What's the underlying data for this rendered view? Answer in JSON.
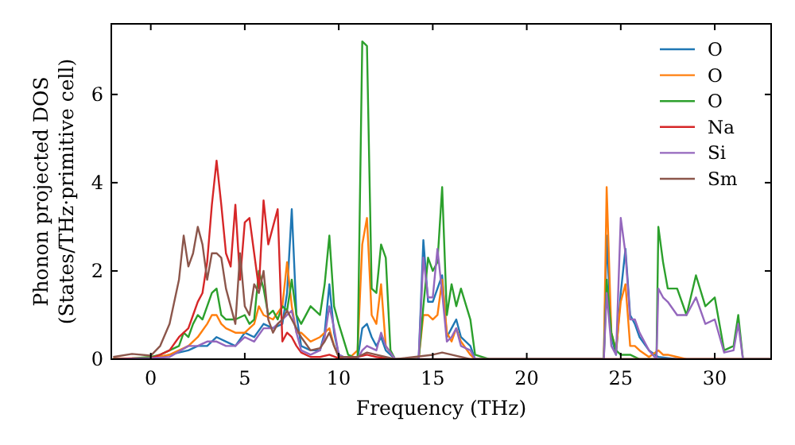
{
  "chart_data": {
    "type": "line",
    "xlabel": "Frequency (THz)",
    "ylabel": "Phonon projected DOS\n(States/THz·primitive cell)",
    "xlim": [
      -2.1,
      33
    ],
    "ylim": [
      0,
      7.6
    ],
    "xticks": [
      0,
      5,
      10,
      15,
      20,
      25,
      30
    ],
    "yticks": [
      0,
      2,
      4,
      6
    ],
    "legend": "top right",
    "grid": false,
    "marker": "none",
    "line_style": "solid",
    "series": [
      {
        "name": "O",
        "color": "#1f77b4",
        "x": [
          0.5,
          1,
          2,
          2.5,
          3,
          3.5,
          4,
          4.5,
          5,
          5.5,
          6,
          6.5,
          7,
          7.25,
          7.5,
          7.75,
          8,
          8.5,
          9,
          9.25,
          9.5,
          9.75,
          10,
          10.5,
          11,
          11.25,
          11.5,
          11.75,
          12,
          12.25,
          12.5,
          13,
          14,
          14.25,
          14.5,
          14.75,
          15,
          15.25,
          15.5,
          15.75,
          16,
          16.25,
          16.5,
          17,
          17.25,
          18,
          24,
          24.1,
          24.25,
          24.5,
          24.75,
          25,
          25.25,
          25.5,
          25.75,
          26,
          26.5,
          27,
          28,
          33
        ],
        "values": [
          0.05,
          0.1,
          0.2,
          0.3,
          0.3,
          0.5,
          0.4,
          0.3,
          0.6,
          0.5,
          0.8,
          0.7,
          0.8,
          1.5,
          3.4,
          1.0,
          0.3,
          0.2,
          0.2,
          0.6,
          1.7,
          0.6,
          0.1,
          0,
          0,
          0.7,
          0.8,
          0.5,
          0.3,
          0.5,
          0.2,
          0,
          0,
          0,
          2.7,
          1.3,
          1.3,
          1.6,
          1.9,
          0.5,
          0.7,
          0.9,
          0.5,
          0.3,
          0,
          0,
          0,
          0,
          2.8,
          0.5,
          0.1,
          1.5,
          2.5,
          1.0,
          0.8,
          0.5,
          0.2,
          0.05,
          0,
          0
        ]
      },
      {
        "name": "O",
        "color": "#ff7f0e",
        "x": [
          -2,
          0,
          1,
          2,
          2.5,
          3,
          3.25,
          3.5,
          3.75,
          4,
          4.5,
          5,
          5.5,
          5.75,
          6,
          6.5,
          7,
          7.25,
          7.5,
          7.75,
          8,
          8.5,
          9,
          9.25,
          9.5,
          9.75,
          10,
          10.5,
          11,
          11.25,
          11.5,
          11.75,
          12,
          12.25,
          12.5,
          13,
          14,
          14.25,
          14.5,
          14.75,
          15,
          15.25,
          15.5,
          15.75,
          16,
          16.25,
          16.5,
          17,
          17.25,
          18,
          24,
          24.1,
          24.25,
          24.5,
          24.75,
          25,
          25.25,
          25.5,
          25.75,
          26,
          26.5,
          27,
          27.25,
          27.5,
          28,
          28.5,
          33
        ],
        "values": [
          0.02,
          0.02,
          0.1,
          0.3,
          0.5,
          0.8,
          1.0,
          1.0,
          0.8,
          0.7,
          0.6,
          0.6,
          0.8,
          1.2,
          1.0,
          0.9,
          1.2,
          2.2,
          1.2,
          0.6,
          0.6,
          0.4,
          0.5,
          0.6,
          0.7,
          0.3,
          0.05,
          0,
          0.2,
          2.6,
          3.2,
          1.0,
          0.8,
          1.7,
          0.3,
          0,
          0,
          0,
          1.0,
          1.0,
          0.9,
          1.0,
          1.8,
          0.6,
          0.4,
          0.7,
          0.4,
          0.1,
          0,
          0,
          0,
          0,
          3.9,
          0.6,
          0.2,
          1.3,
          1.7,
          0.3,
          0.3,
          0.2,
          0.05,
          0.2,
          0.1,
          0.1,
          0.05,
          0,
          0
        ]
      },
      {
        "name": "O",
        "color": "#2ca02c",
        "x": [
          -2,
          -1,
          0,
          0.5,
          1,
          1.5,
          1.75,
          2,
          2.25,
          2.5,
          2.75,
          3,
          3.25,
          3.5,
          3.75,
          4,
          4.5,
          5,
          5.25,
          5.5,
          5.75,
          6,
          6.25,
          6.5,
          6.75,
          7,
          7.25,
          7.5,
          7.75,
          8,
          8.5,
          9,
          9.25,
          9.5,
          9.75,
          10,
          10.5,
          11,
          11.25,
          11.5,
          11.75,
          12,
          12.25,
          12.5,
          12.75,
          13,
          14,
          14.25,
          14.5,
          14.75,
          15,
          15.25,
          15.5,
          15.75,
          16,
          16.25,
          16.5,
          17,
          17.25,
          18,
          24,
          24.1,
          24.25,
          24.5,
          24.75,
          25,
          25.5,
          26,
          26.5,
          26.9,
          27,
          27.25,
          27.5,
          28,
          28.5,
          29,
          29.5,
          30,
          30.5,
          31,
          31.25,
          31.5,
          33
        ],
        "values": [
          0,
          0.02,
          0.05,
          0.1,
          0.2,
          0.3,
          0.6,
          0.5,
          0.8,
          1.0,
          0.9,
          1.2,
          1.5,
          1.6,
          1.0,
          0.9,
          0.9,
          1.0,
          0.8,
          0.9,
          2.0,
          1.6,
          1.0,
          1.1,
          0.9,
          1.2,
          1.1,
          1.8,
          1.0,
          0.8,
          1.2,
          1.0,
          1.7,
          2.8,
          1.2,
          0.8,
          0.1,
          0,
          7.2,
          7.1,
          1.6,
          1.5,
          2.6,
          2.3,
          0.2,
          0,
          0,
          0,
          1.2,
          2.3,
          2.0,
          2.2,
          3.9,
          1.0,
          1.7,
          1.2,
          1.6,
          0.9,
          0.1,
          0,
          0,
          0,
          1.8,
          0.6,
          0.2,
          0.1,
          0.1,
          0,
          0,
          0,
          3.0,
          2.2,
          1.6,
          1.6,
          1.0,
          1.9,
          1.2,
          1.4,
          0.2,
          0.3,
          1.0,
          0,
          0
        ]
      },
      {
        "name": "Na",
        "color": "#d62728",
        "x": [
          -2,
          -1,
          0,
          0.5,
          1,
          1.5,
          1.75,
          2,
          2.25,
          2.5,
          2.75,
          3,
          3.25,
          3.5,
          3.75,
          4,
          4.25,
          4.5,
          4.75,
          5,
          5.25,
          5.5,
          5.75,
          6,
          6.25,
          6.5,
          6.75,
          7,
          7.25,
          7.5,
          7.75,
          8,
          8.5,
          9,
          9.5,
          10,
          11,
          11.5,
          12,
          12.5,
          13,
          33
        ],
        "values": [
          0,
          0.02,
          0.02,
          0.1,
          0.2,
          0.5,
          0.6,
          0.7,
          1.0,
          1.3,
          1.5,
          2.2,
          3.5,
          4.5,
          3.5,
          2.4,
          2.1,
          3.5,
          1.8,
          3.1,
          3.2,
          2.4,
          1.6,
          3.6,
          2.6,
          3.0,
          3.4,
          0.4,
          0.6,
          0.5,
          0.3,
          0.15,
          0.05,
          0.05,
          0.1,
          0.02,
          0.05,
          0.1,
          0.05,
          0.02,
          0,
          0
        ]
      },
      {
        "name": "Si",
        "color": "#9467bd",
        "x": [
          -2,
          0,
          1,
          2,
          2.5,
          3,
          3.5,
          4,
          4.5,
          5,
          5.5,
          6,
          6.5,
          7,
          7.25,
          7.5,
          7.75,
          8,
          8.5,
          9,
          9.25,
          9.5,
          9.75,
          10,
          10.5,
          11,
          11.25,
          11.5,
          12,
          12.25,
          12.5,
          13,
          14,
          14.25,
          14.5,
          14.75,
          15,
          15.25,
          15.5,
          15.75,
          16,
          16.25,
          16.5,
          17,
          17.25,
          18,
          24,
          24.1,
          24.25,
          24.5,
          24.75,
          25,
          25.25,
          25.5,
          25.75,
          26,
          26.5,
          26.9,
          27,
          27.25,
          27.5,
          28,
          28.5,
          29,
          29.5,
          30,
          30.5,
          31,
          31.25,
          31.5,
          33
        ],
        "values": [
          0,
          0.02,
          0.05,
          0.3,
          0.3,
          0.4,
          0.4,
          0.3,
          0.3,
          0.5,
          0.4,
          0.7,
          0.7,
          0.9,
          1.0,
          1.1,
          0.6,
          0.2,
          0.1,
          0.2,
          0.5,
          1.2,
          0.7,
          0.1,
          0,
          0,
          0.2,
          0.3,
          0.2,
          0.6,
          0.3,
          0,
          0,
          0,
          2.3,
          1.4,
          1.4,
          2.5,
          1.5,
          0.4,
          0.5,
          0.7,
          0.3,
          0.2,
          0,
          0,
          0,
          0,
          1.5,
          0.3,
          0.1,
          3.2,
          2.4,
          0.9,
          0.9,
          0.6,
          0.2,
          0,
          1.6,
          1.4,
          1.3,
          1.0,
          1.0,
          1.4,
          0.8,
          0.9,
          0.15,
          0.2,
          0.8,
          0,
          0
        ]
      },
      {
        "name": "Sm",
        "color": "#8c564b",
        "x": [
          -2,
          -1,
          0,
          0.5,
          1,
          1.5,
          1.75,
          2,
          2.25,
          2.5,
          2.75,
          3,
          3.25,
          3.5,
          3.75,
          4,
          4.25,
          4.5,
          4.75,
          5,
          5.25,
          5.5,
          5.75,
          6,
          6.25,
          6.5,
          6.75,
          7,
          7.25,
          7.5,
          7.75,
          8,
          8.5,
          9,
          9.25,
          9.5,
          9.75,
          10,
          11,
          11.5,
          12,
          12.5,
          13,
          15,
          15.5,
          16,
          17,
          33
        ],
        "values": [
          0.05,
          0.12,
          0.08,
          0.3,
          0.8,
          1.8,
          2.8,
          2.1,
          2.4,
          3.0,
          2.6,
          1.8,
          2.4,
          2.4,
          2.3,
          1.6,
          1.2,
          0.8,
          2.4,
          1.2,
          1.0,
          1.7,
          1.5,
          2.0,
          0.9,
          0.6,
          0.8,
          0.9,
          1.1,
          0.9,
          0.7,
          0.5,
          0.2,
          0.25,
          0.4,
          0.6,
          0.3,
          0.05,
          0.05,
          0.15,
          0.1,
          0.05,
          0,
          0.1,
          0.15,
          0.1,
          0,
          0
        ]
      }
    ]
  }
}
